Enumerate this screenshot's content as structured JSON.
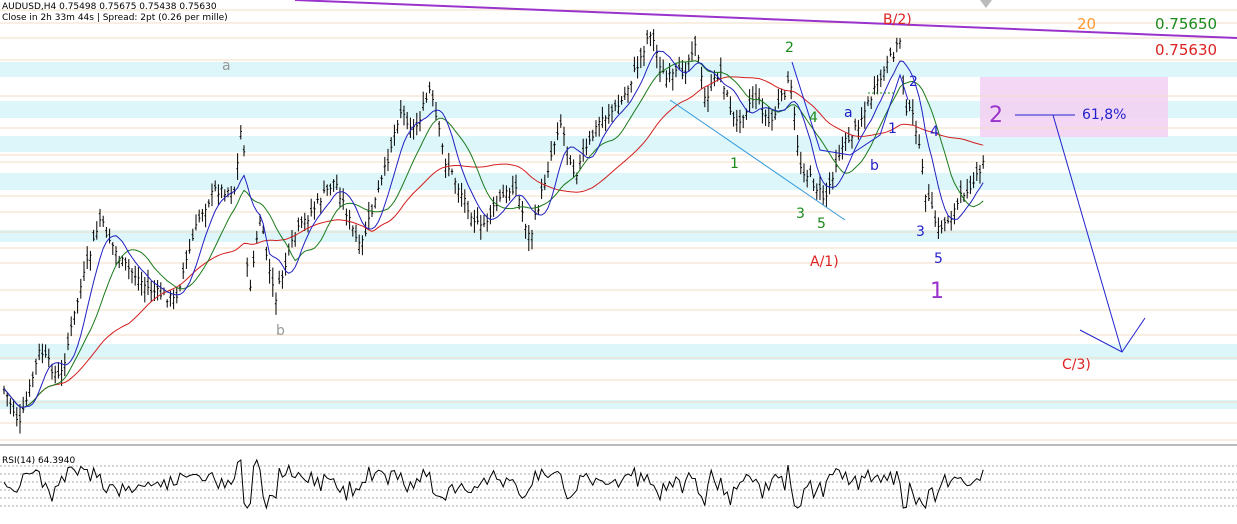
{
  "header": {
    "symbol_line": "AUDUSD,H4  0.75498 0.75675 0.75438 0.75630",
    "info_line": "Close in 2h 33m 44s | Spread: 2pt (0.26 per mille)"
  },
  "price_labels": {
    "period": "20",
    "upper": "0.75650",
    "current": "0.75630"
  },
  "rsi": {
    "label": "RSI(14) 64.3940"
  },
  "annotations": {
    "a_gray": "a",
    "b_gray": "b",
    "g1": "1",
    "g2": "2",
    "g3": "3",
    "g4": "4",
    "g5": "5",
    "red_a1": "A/1)",
    "red_b2": "B/2)",
    "red_c3": "C/3)",
    "blue_a": "a",
    "blue_b": "b",
    "blue_1": "1",
    "blue_2": "2",
    "blue_3": "3",
    "blue_4": "4",
    "blue_5": "5",
    "purple_1": "1",
    "purple_2": "2",
    "fib": "61,8%"
  },
  "colors": {
    "purple": "#9a33cc",
    "green": "#1a8a1a",
    "blue": "#2222cc",
    "red": "#dd2222",
    "orange": "#ff9933",
    "zone": "#d6f5f9",
    "pinkzone": "#f3d3f3",
    "ma_red": "#d41e1e",
    "ma_blue": "#2020c0",
    "ma_green": "#1a7a1a",
    "line_blue": "#3399dd"
  },
  "chart_data": {
    "type": "candlestick",
    "symbol": "AUDUSD",
    "timeframe": "H4",
    "last_bar": {
      "open": 0.75498,
      "high": 0.75675,
      "low": 0.75438,
      "close": 0.7563
    },
    "levels": [
      0.7565,
      0.7563
    ],
    "fib_ratio": "61,8%",
    "indicators": [
      "RSI(14)"
    ],
    "rsi_value": 64.394
  }
}
